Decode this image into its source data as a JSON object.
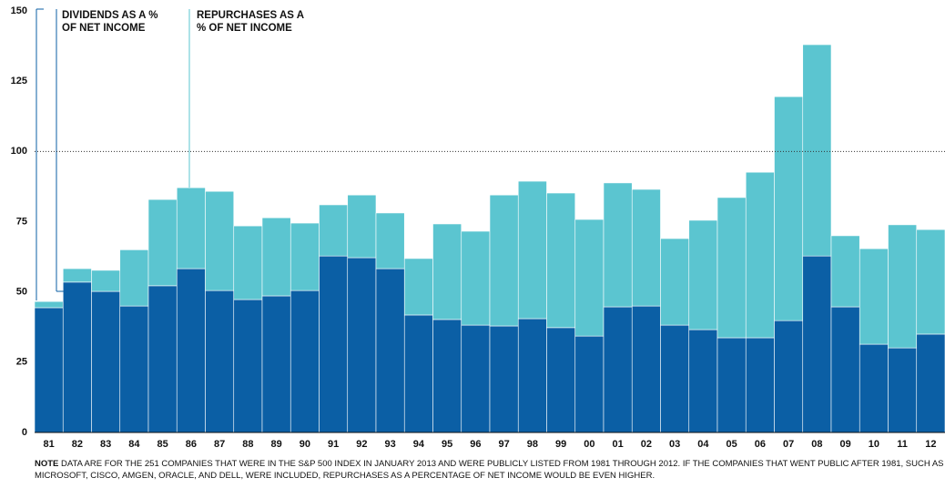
{
  "chart_data": {
    "type": "stacked_bar",
    "categories": [
      "81",
      "82",
      "83",
      "84",
      "85",
      "86",
      "87",
      "88",
      "89",
      "90",
      "91",
      "92",
      "93",
      "94",
      "95",
      "96",
      "97",
      "98",
      "99",
      "00",
      "01",
      "02",
      "03",
      "04",
      "05",
      "06",
      "07",
      "08",
      "09",
      "10",
      "11",
      "12"
    ],
    "series": [
      {
        "name": "DIVIDENDS AS A % OF NET INCOME",
        "color": "#0b5fa5",
        "values": [
          44.4,
          53.5,
          50.2,
          45,
          52.2,
          58.3,
          50.5,
          47.3,
          48.6,
          50.5,
          62.8,
          62.2,
          58.3,
          41.8,
          40.2,
          38.2,
          37.9,
          40.5,
          37.3,
          34.3,
          44.7,
          45,
          38.2,
          36.6,
          33.7,
          33.7,
          39.8,
          62.8,
          44.7,
          31.4,
          30.1,
          35
        ]
      },
      {
        "name": "REPURCHASES AS A % OF NET INCOME",
        "color": "#5bc5d0",
        "values": [
          2.2,
          4.8,
          7.5,
          20,
          30.7,
          28.8,
          35.3,
          26.2,
          27.8,
          24,
          18.2,
          22.3,
          19.8,
          20.1,
          34,
          33.4,
          46.6,
          48.9,
          47.9,
          41.5,
          44.1,
          41.5,
          30.8,
          38.9,
          49.9,
          58.9,
          79.7,
          75.2,
          25.3,
          34,
          43.8,
          37.2
        ]
      }
    ],
    "ylim": [
      0,
      150
    ],
    "yticks": [
      0,
      25,
      50,
      75,
      100,
      125,
      150
    ],
    "reference_line": 100,
    "note_label": "NOTE",
    "note": "DATA ARE FOR THE 251 COMPANIES THAT WERE IN THE S&P 500 INDEX IN JANUARY 2013 AND WERE PUBLICLY LISTED FROM 1981 THROUGH 2012. IF THE COMPANIES THAT WENT PUBLIC AFTER 1981, SUCH AS MICROSOFT, CISCO, AMGEN, ORACLE, AND DELL, WERE INCLUDED, REPURCHASES AS A PERCENTAGE OF NET INCOME WOULD BE EVEN HIGHER."
  }
}
